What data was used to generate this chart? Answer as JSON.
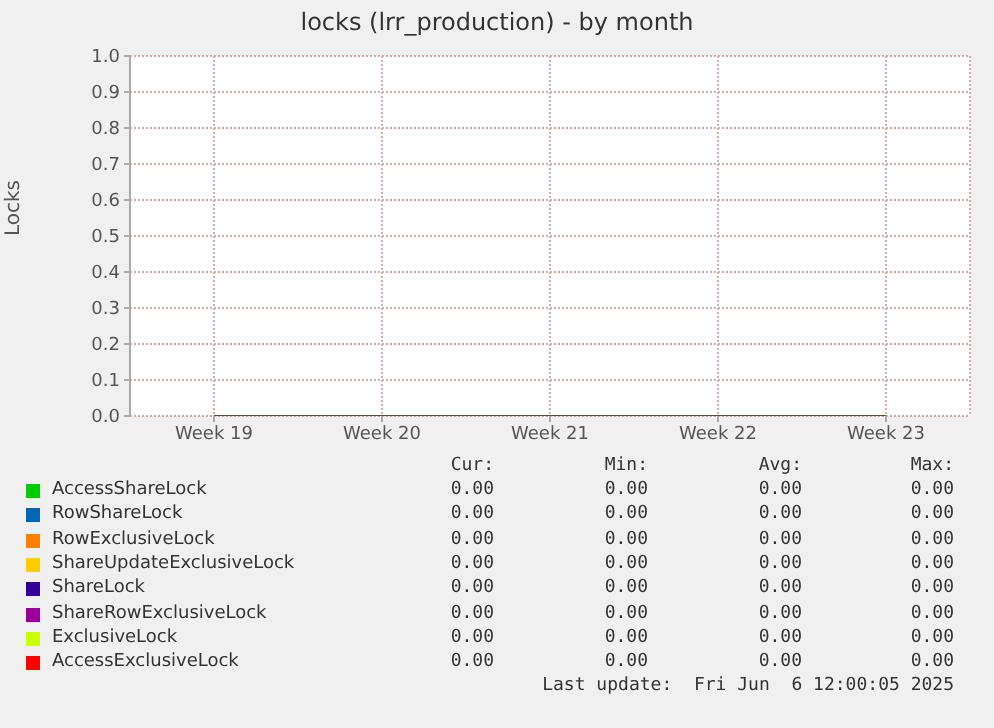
{
  "chart_data": {
    "type": "line",
    "title": "locks (lrr_production) - by month",
    "ylabel": "Locks",
    "categories": [
      "Week 19",
      "Week 20",
      "Week 21",
      "Week 22",
      "Week 23"
    ],
    "ylim": [
      0,
      1
    ],
    "yticks": [
      {
        "value": 0,
        "label": "0.0"
      },
      0.1,
      0.2,
      0.3,
      0.4,
      0.5,
      0.6,
      0.7,
      0.8,
      0.9,
      {
        "value": 1,
        "label": "1.0"
      }
    ],
    "grid": true,
    "legend": "bottom",
    "marker": "none",
    "line_style": "solid",
    "series": [
      {
        "name": "AccessShareLock",
        "color": "#00cc00",
        "values": [
          null,
          null,
          null,
          null,
          null
        ]
      },
      {
        "name": "RowShareLock",
        "color": "#0066b3",
        "values": [
          null,
          null,
          null,
          null,
          null
        ]
      },
      {
        "name": "RowExclusiveLock",
        "color": "#ff8000",
        "values": [
          null,
          null,
          null,
          null,
          null
        ]
      },
      {
        "name": "ShareUpdateExclusiveLock",
        "color": "#ffcc00",
        "values": [
          null,
          null,
          null,
          null,
          null
        ]
      },
      {
        "name": "ShareLock",
        "color": "#330099",
        "values": [
          null,
          null,
          null,
          null,
          null
        ]
      },
      {
        "name": "ShareRowExclusiveLock",
        "color": "#990099",
        "values": [
          null,
          null,
          null,
          null,
          null
        ]
      },
      {
        "name": "ExclusiveLock",
        "color": "#ccff00",
        "values": [
          null,
          null,
          null,
          null,
          null
        ]
      },
      {
        "name": "AccessExclusiveLock",
        "color": "#ff0000",
        "values": [
          0,
          0,
          0,
          0,
          0
        ]
      }
    ],
    "annotations": [
      "Cur:",
      "Min:",
      "Avg:",
      "Max:",
      "0.00",
      "0.00",
      "0.00",
      "0.00",
      "0.00",
      "0.00",
      "0.00",
      "0.00",
      "0.00",
      "0.00",
      "0.00",
      "0.00",
      "0.00",
      "0.00",
      "0.00",
      "0.00",
      "0.00",
      "0.00",
      "0.00",
      "0.00",
      "0.00",
      "0.00",
      "0.00",
      "0.00",
      "0.00",
      "0.00",
      "0.00",
      "0.00",
      "0.00",
      "0.00",
      "0.00",
      "0.00",
      "Last update:  Fri Jun  6 12:00:05 2025"
    ]
  }
}
